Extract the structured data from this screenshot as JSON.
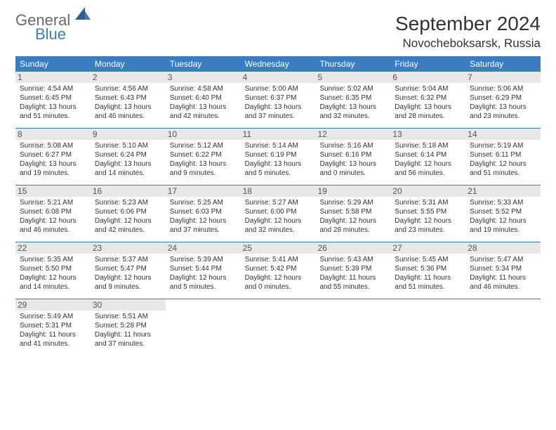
{
  "logo": {
    "line1": "General",
    "line2": "Blue"
  },
  "title": "September 2024",
  "location": "Novocheboksarsk, Russia",
  "colors": {
    "header_bg": "#3a7ec1",
    "header_text": "#ffffff",
    "daynum_bg": "#e8e8e8",
    "border": "#3a7ec1",
    "logo_gray": "#6b6b6b",
    "logo_blue": "#3a7ec1"
  },
  "day_names": [
    "Sunday",
    "Monday",
    "Tuesday",
    "Wednesday",
    "Thursday",
    "Friday",
    "Saturday"
  ],
  "days": [
    {
      "n": 1,
      "sr": "4:54 AM",
      "ss": "6:45 PM",
      "dl": "13 hours and 51 minutes."
    },
    {
      "n": 2,
      "sr": "4:56 AM",
      "ss": "6:43 PM",
      "dl": "13 hours and 46 minutes."
    },
    {
      "n": 3,
      "sr": "4:58 AM",
      "ss": "6:40 PM",
      "dl": "13 hours and 42 minutes."
    },
    {
      "n": 4,
      "sr": "5:00 AM",
      "ss": "6:37 PM",
      "dl": "13 hours and 37 minutes."
    },
    {
      "n": 5,
      "sr": "5:02 AM",
      "ss": "6:35 PM",
      "dl": "13 hours and 32 minutes."
    },
    {
      "n": 6,
      "sr": "5:04 AM",
      "ss": "6:32 PM",
      "dl": "13 hours and 28 minutes."
    },
    {
      "n": 7,
      "sr": "5:06 AM",
      "ss": "6:29 PM",
      "dl": "13 hours and 23 minutes."
    },
    {
      "n": 8,
      "sr": "5:08 AM",
      "ss": "6:27 PM",
      "dl": "13 hours and 19 minutes."
    },
    {
      "n": 9,
      "sr": "5:10 AM",
      "ss": "6:24 PM",
      "dl": "13 hours and 14 minutes."
    },
    {
      "n": 10,
      "sr": "5:12 AM",
      "ss": "6:22 PM",
      "dl": "13 hours and 9 minutes."
    },
    {
      "n": 11,
      "sr": "5:14 AM",
      "ss": "6:19 PM",
      "dl": "13 hours and 5 minutes."
    },
    {
      "n": 12,
      "sr": "5:16 AM",
      "ss": "6:16 PM",
      "dl": "13 hours and 0 minutes."
    },
    {
      "n": 13,
      "sr": "5:18 AM",
      "ss": "6:14 PM",
      "dl": "12 hours and 56 minutes."
    },
    {
      "n": 14,
      "sr": "5:19 AM",
      "ss": "6:11 PM",
      "dl": "12 hours and 51 minutes."
    },
    {
      "n": 15,
      "sr": "5:21 AM",
      "ss": "6:08 PM",
      "dl": "12 hours and 46 minutes."
    },
    {
      "n": 16,
      "sr": "5:23 AM",
      "ss": "6:06 PM",
      "dl": "12 hours and 42 minutes."
    },
    {
      "n": 17,
      "sr": "5:25 AM",
      "ss": "6:03 PM",
      "dl": "12 hours and 37 minutes."
    },
    {
      "n": 18,
      "sr": "5:27 AM",
      "ss": "6:00 PM",
      "dl": "12 hours and 32 minutes."
    },
    {
      "n": 19,
      "sr": "5:29 AM",
      "ss": "5:58 PM",
      "dl": "12 hours and 28 minutes."
    },
    {
      "n": 20,
      "sr": "5:31 AM",
      "ss": "5:55 PM",
      "dl": "12 hours and 23 minutes."
    },
    {
      "n": 21,
      "sr": "5:33 AM",
      "ss": "5:52 PM",
      "dl": "12 hours and 19 minutes."
    },
    {
      "n": 22,
      "sr": "5:35 AM",
      "ss": "5:50 PM",
      "dl": "12 hours and 14 minutes."
    },
    {
      "n": 23,
      "sr": "5:37 AM",
      "ss": "5:47 PM",
      "dl": "12 hours and 9 minutes."
    },
    {
      "n": 24,
      "sr": "5:39 AM",
      "ss": "5:44 PM",
      "dl": "12 hours and 5 minutes."
    },
    {
      "n": 25,
      "sr": "5:41 AM",
      "ss": "5:42 PM",
      "dl": "12 hours and 0 minutes."
    },
    {
      "n": 26,
      "sr": "5:43 AM",
      "ss": "5:39 PM",
      "dl": "11 hours and 55 minutes."
    },
    {
      "n": 27,
      "sr": "5:45 AM",
      "ss": "5:36 PM",
      "dl": "11 hours and 51 minutes."
    },
    {
      "n": 28,
      "sr": "5:47 AM",
      "ss": "5:34 PM",
      "dl": "11 hours and 46 minutes."
    },
    {
      "n": 29,
      "sr": "5:49 AM",
      "ss": "5:31 PM",
      "dl": "11 hours and 41 minutes."
    },
    {
      "n": 30,
      "sr": "5:51 AM",
      "ss": "5:28 PM",
      "dl": "11 hours and 37 minutes."
    }
  ],
  "labels": {
    "sunrise": "Sunrise:",
    "sunset": "Sunset:",
    "daylight": "Daylight:"
  }
}
